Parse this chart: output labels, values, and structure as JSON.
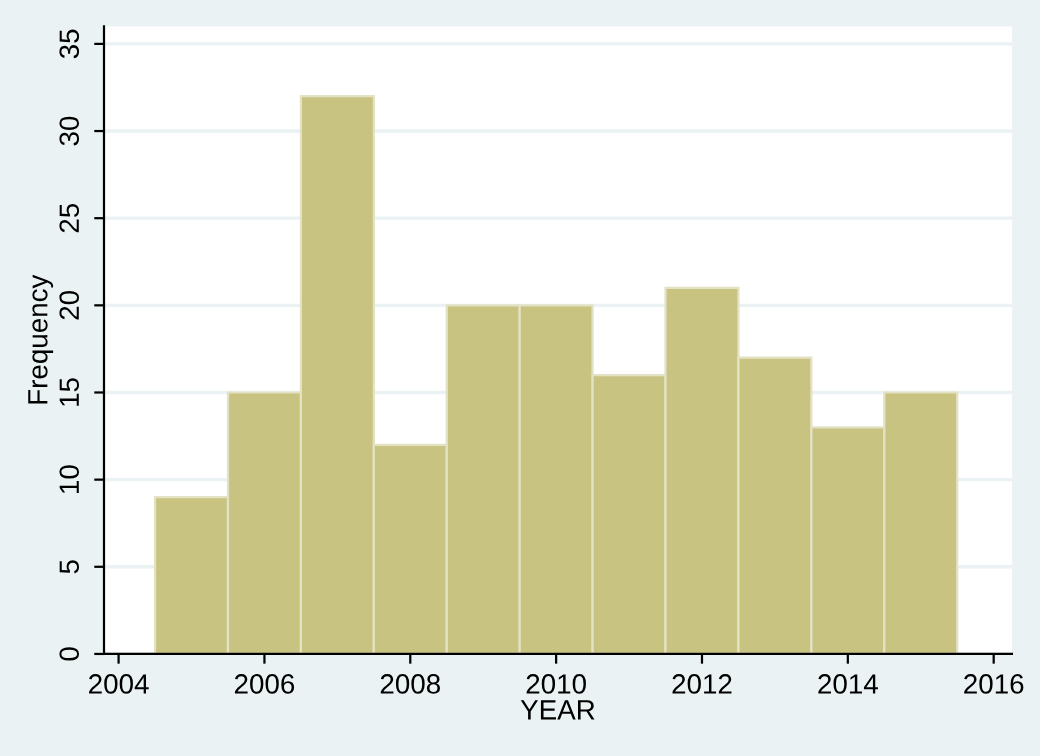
{
  "chart_data": {
    "type": "histogram",
    "xlabel": "YEAR",
    "ylabel": "Frequency",
    "bins": [
      2004.5,
      2005.5,
      2006.5,
      2007.5,
      2008.5,
      2009.5,
      2010.5,
      2011.5,
      2012.5,
      2013.5,
      2014.5,
      2015.5
    ],
    "values": [
      9,
      15,
      32,
      12,
      20,
      20,
      16,
      21,
      17,
      13,
      15
    ],
    "color": "#c9c382",
    "xlim": [
      2003.8,
      2016.25
    ],
    "xticks": [
      2004,
      2006,
      2008,
      2010,
      2012,
      2014,
      2016
    ],
    "ylim": [
      0,
      36
    ],
    "yticks": [
      0,
      5,
      10,
      15,
      20,
      25,
      30,
      35
    ],
    "grid": "y"
  }
}
